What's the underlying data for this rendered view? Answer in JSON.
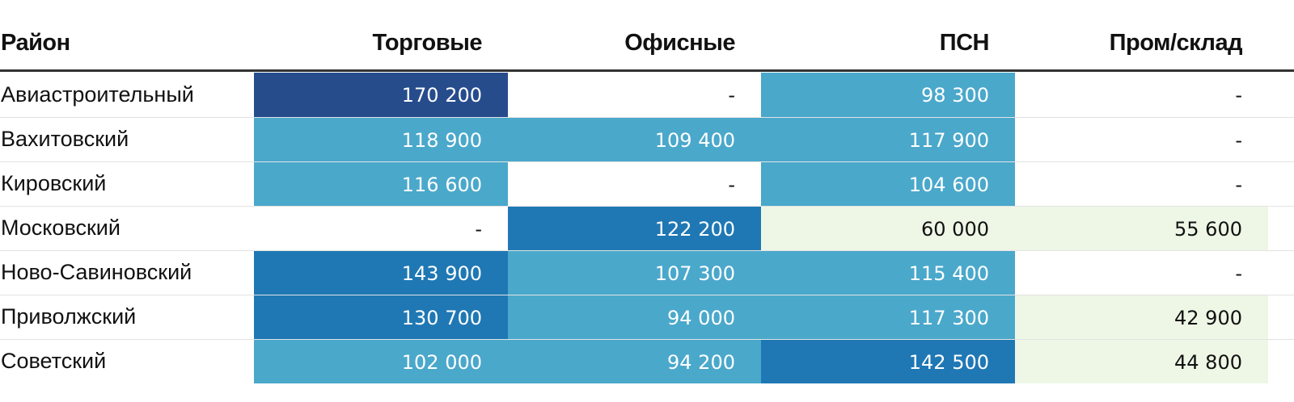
{
  "chart_data": {
    "type": "table",
    "columns": [
      "Район",
      "Торговые",
      "Офисные",
      "ПСН",
      "Пром/склад"
    ],
    "rows": [
      {
        "label": "Авиастроительный",
        "values": [
          "170 200",
          "-",
          "98 300",
          "-"
        ]
      },
      {
        "label": "Вахитовский",
        "values": [
          "118 900",
          "109 400",
          "117 900",
          "-"
        ]
      },
      {
        "label": "Кировский",
        "values": [
          "116 600",
          "-",
          "104 600",
          "-"
        ]
      },
      {
        "label": "Московский",
        "values": [
          "-",
          "122 200",
          "60 000",
          "55 600"
        ]
      },
      {
        "label": "Ново-Савиновский",
        "values": [
          "143 900",
          "107 300",
          "115 400",
          "-"
        ]
      },
      {
        "label": "Приволжский",
        "values": [
          "130 700",
          "94 000",
          "117 300",
          "42 900"
        ]
      },
      {
        "label": "Советский",
        "values": [
          "102 000",
          "94 200",
          "142 500",
          "44 800"
        ]
      }
    ],
    "color_scale": [
      {
        "min": 0,
        "max": 59999,
        "color": "#eef7e6",
        "text": "#111111"
      },
      {
        "min": 60000,
        "max": 79999,
        "color": "#eef7e6",
        "text": "#111111"
      },
      {
        "min": 80000,
        "max": 119999,
        "color": "#4aa8cb",
        "text": "#ffffff"
      },
      {
        "min": 120000,
        "max": 159999,
        "color": "#1f78b4",
        "text": "#ffffff"
      },
      {
        "min": 160000,
        "max": 999999,
        "color": "#264c8c",
        "text": "#ffffff"
      }
    ],
    "empty_color": "#ffffff",
    "empty_text_color": "#111111"
  }
}
